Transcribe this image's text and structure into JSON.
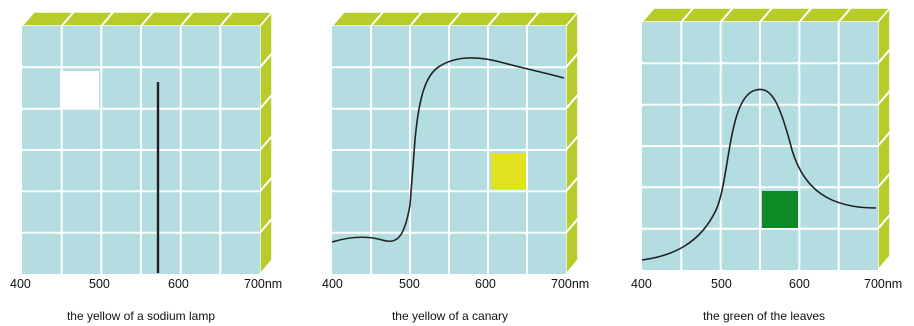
{
  "colors": {
    "cell": "#b4dde2",
    "gridline": "#ffffff",
    "top_face": "#b7cc2a",
    "side_face": "#b7cc2a",
    "curve": "#222222"
  },
  "panels": [
    {
      "caption": "the yellow of a sodium lamp",
      "ticks": [
        "400",
        "500",
        "600",
        "700nm"
      ],
      "swatch_color": "#ffffff",
      "curve_icon": "narrow-spectral-line"
    },
    {
      "caption": "the yellow of a canary",
      "ticks": [
        "400",
        "500",
        "600",
        "700nm"
      ],
      "swatch_color": "#e3e21f",
      "curve_icon": "rising-plateau-curve"
    },
    {
      "caption": "the green of the leaves",
      "ticks": [
        "400",
        "500",
        "600",
        "700nm"
      ],
      "swatch_color": "#0e8a24",
      "curve_icon": "green-peak-curve"
    }
  ]
}
